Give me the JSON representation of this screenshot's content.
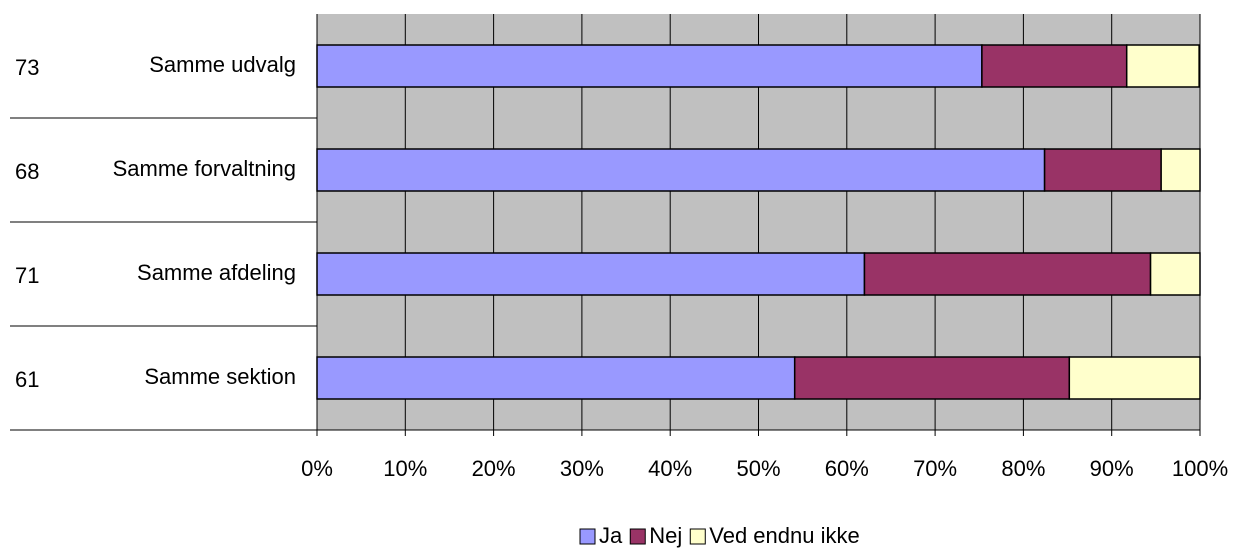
{
  "chart_data": {
    "type": "stacked_bar_horizontal",
    "categories": [
      "Samme udvalg",
      "Samme forvaltning",
      "Samme afdeling",
      "Samme sektion"
    ],
    "counts": [
      73,
      68,
      71,
      61
    ],
    "series": [
      {
        "name": "Ja",
        "color": "#9999ff",
        "values": [
          75.3,
          82.4,
          62.0,
          54.1
        ]
      },
      {
        "name": "Nej",
        "color": "#993366",
        "values": [
          16.4,
          13.2,
          32.4,
          31.1
        ]
      },
      {
        "name": "Ved endnu ikke",
        "color": "#ffffcc",
        "values": [
          8.2,
          4.4,
          5.6,
          14.8
        ]
      }
    ],
    "xlim": [
      0,
      100
    ],
    "xticks": [
      {
        "value": 0,
        "label": "0%"
      },
      {
        "value": 10,
        "label": "10%"
      },
      {
        "value": 20,
        "label": "20%"
      },
      {
        "value": 30,
        "label": "30%"
      },
      {
        "value": 40,
        "label": "40%"
      },
      {
        "value": 50,
        "label": "50%"
      },
      {
        "value": 60,
        "label": "60%"
      },
      {
        "value": 70,
        "label": "70%"
      },
      {
        "value": 80,
        "label": "80%"
      },
      {
        "value": 90,
        "label": "90%"
      },
      {
        "value": 100,
        "label": "100%"
      }
    ],
    "grid": true,
    "plot_background": "#c0c0c0",
    "legend": "bottom"
  }
}
